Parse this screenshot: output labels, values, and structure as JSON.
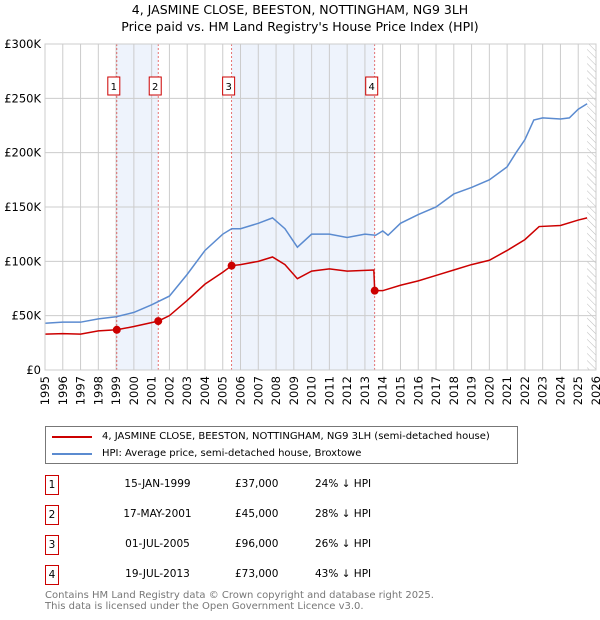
{
  "chart_data": {
    "type": "line",
    "title": "4, JASMINE CLOSE, BEESTON, NOTTINGHAM, NG9 3LH",
    "subtitle": "Price paid vs. HM Land Registry's House Price Index (HPI)",
    "xlim": [
      1995,
      2026
    ],
    "ylim": [
      0,
      300000
    ],
    "y_ticks": [
      0,
      50000,
      100000,
      150000,
      200000,
      250000,
      300000
    ],
    "y_tick_labels": [
      "£0",
      "£50K",
      "£100K",
      "£150K",
      "£200K",
      "£250K",
      "£300K"
    ],
    "x_ticks": [
      "1995",
      "1996",
      "1997",
      "1998",
      "1999",
      "2000",
      "2001",
      "2002",
      "2003",
      "2004",
      "2005",
      "2006",
      "2007",
      "2008",
      "2009",
      "2010",
      "2011",
      "2012",
      "2013",
      "2014",
      "2015",
      "2016",
      "2017",
      "2018",
      "2019",
      "2020",
      "2021",
      "2022",
      "2023",
      "2024",
      "2025",
      "2026"
    ],
    "grid": true,
    "shaded_ranges": [
      [
        1999.04,
        2001.37
      ],
      [
        2005.5,
        2013.55
      ]
    ],
    "forecast_hatch_from": 2025.5,
    "series": [
      {
        "name": "4, JASMINE CLOSE, BEESTON, NOTTINGHAM, NG9 3LH (semi-detached house)",
        "color": "#cc0000",
        "x": [
          1995,
          1996,
          1997,
          1998,
          1999.04,
          2000,
          2001.37,
          2002,
          2003,
          2004,
          2005,
          2005.5,
          2006,
          2007,
          2007.8,
          2008.5,
          2009.2,
          2010,
          2011,
          2012,
          2013.5,
          2013.55,
          2014,
          2015,
          2016,
          2017,
          2018,
          2019,
          2020,
          2021,
          2022,
          2022.8,
          2024,
          2025,
          2025.5
        ],
        "y": [
          33000,
          33500,
          33000,
          36000,
          37000,
          40000,
          45000,
          50000,
          64000,
          79000,
          90000,
          96000,
          97000,
          100000,
          104000,
          97000,
          84000,
          91000,
          93000,
          91000,
          92000,
          73000,
          73000,
          78000,
          82000,
          87000,
          92000,
          97000,
          101000,
          110000,
          120000,
          132000,
          133000,
          138000,
          140000
        ]
      },
      {
        "name": "HPI: Average price, semi-detached house, Broxtowe",
        "color": "#5b8bd0",
        "x": [
          1995,
          1996,
          1997,
          1998,
          1999,
          2000,
          2001,
          2002,
          2003,
          2004,
          2005,
          2005.5,
          2006,
          2007,
          2007.8,
          2008.5,
          2009.2,
          2010,
          2011,
          2012,
          2013,
          2013.6,
          2014,
          2014.3,
          2015,
          2016,
          2017,
          2018,
          2019,
          2020,
          2021,
          2021.5,
          2022,
          2022.5,
          2023,
          2024,
          2024.5,
          2025,
          2025.5
        ],
        "y": [
          43000,
          44000,
          44000,
          47000,
          49000,
          53000,
          60000,
          68000,
          88000,
          110000,
          125000,
          130000,
          130000,
          135000,
          140000,
          130000,
          113000,
          125000,
          125000,
          122000,
          125000,
          124000,
          128000,
          124000,
          135000,
          143000,
          150000,
          162000,
          168000,
          175000,
          187000,
          200000,
          212000,
          230000,
          232000,
          231000,
          232000,
          240000,
          245000
        ]
      }
    ],
    "markers": [
      {
        "label": "1",
        "x": 1999.04,
        "y": 37000
      },
      {
        "label": "2",
        "x": 2001.37,
        "y": 45000
      },
      {
        "label": "3",
        "x": 2005.5,
        "y": 96000
      },
      {
        "label": "4",
        "x": 2013.55,
        "y": 73000
      }
    ]
  },
  "legend": [
    {
      "label": "4, JASMINE CLOSE, BEESTON, NOTTINGHAM, NG9 3LH (semi-detached house)",
      "color": "#cc0000"
    },
    {
      "label": "HPI: Average price, semi-detached house, Broxtowe",
      "color": "#5b8bd0"
    }
  ],
  "transactions": [
    {
      "num": "1",
      "date": "15-JAN-1999",
      "price": "£37,000",
      "hpi": "24% ↓ HPI"
    },
    {
      "num": "2",
      "date": "17-MAY-2001",
      "price": "£45,000",
      "hpi": "28% ↓ HPI"
    },
    {
      "num": "3",
      "date": "01-JUL-2005",
      "price": "£96,000",
      "hpi": "26% ↓ HPI"
    },
    {
      "num": "4",
      "date": "19-JUL-2013",
      "price": "£73,000",
      "hpi": "43% ↓ HPI"
    }
  ],
  "footer": {
    "line1": "Contains HM Land Registry data © Crown copyright and database right 2025.",
    "line2": "This data is licensed under the Open Government Licence v3.0."
  }
}
